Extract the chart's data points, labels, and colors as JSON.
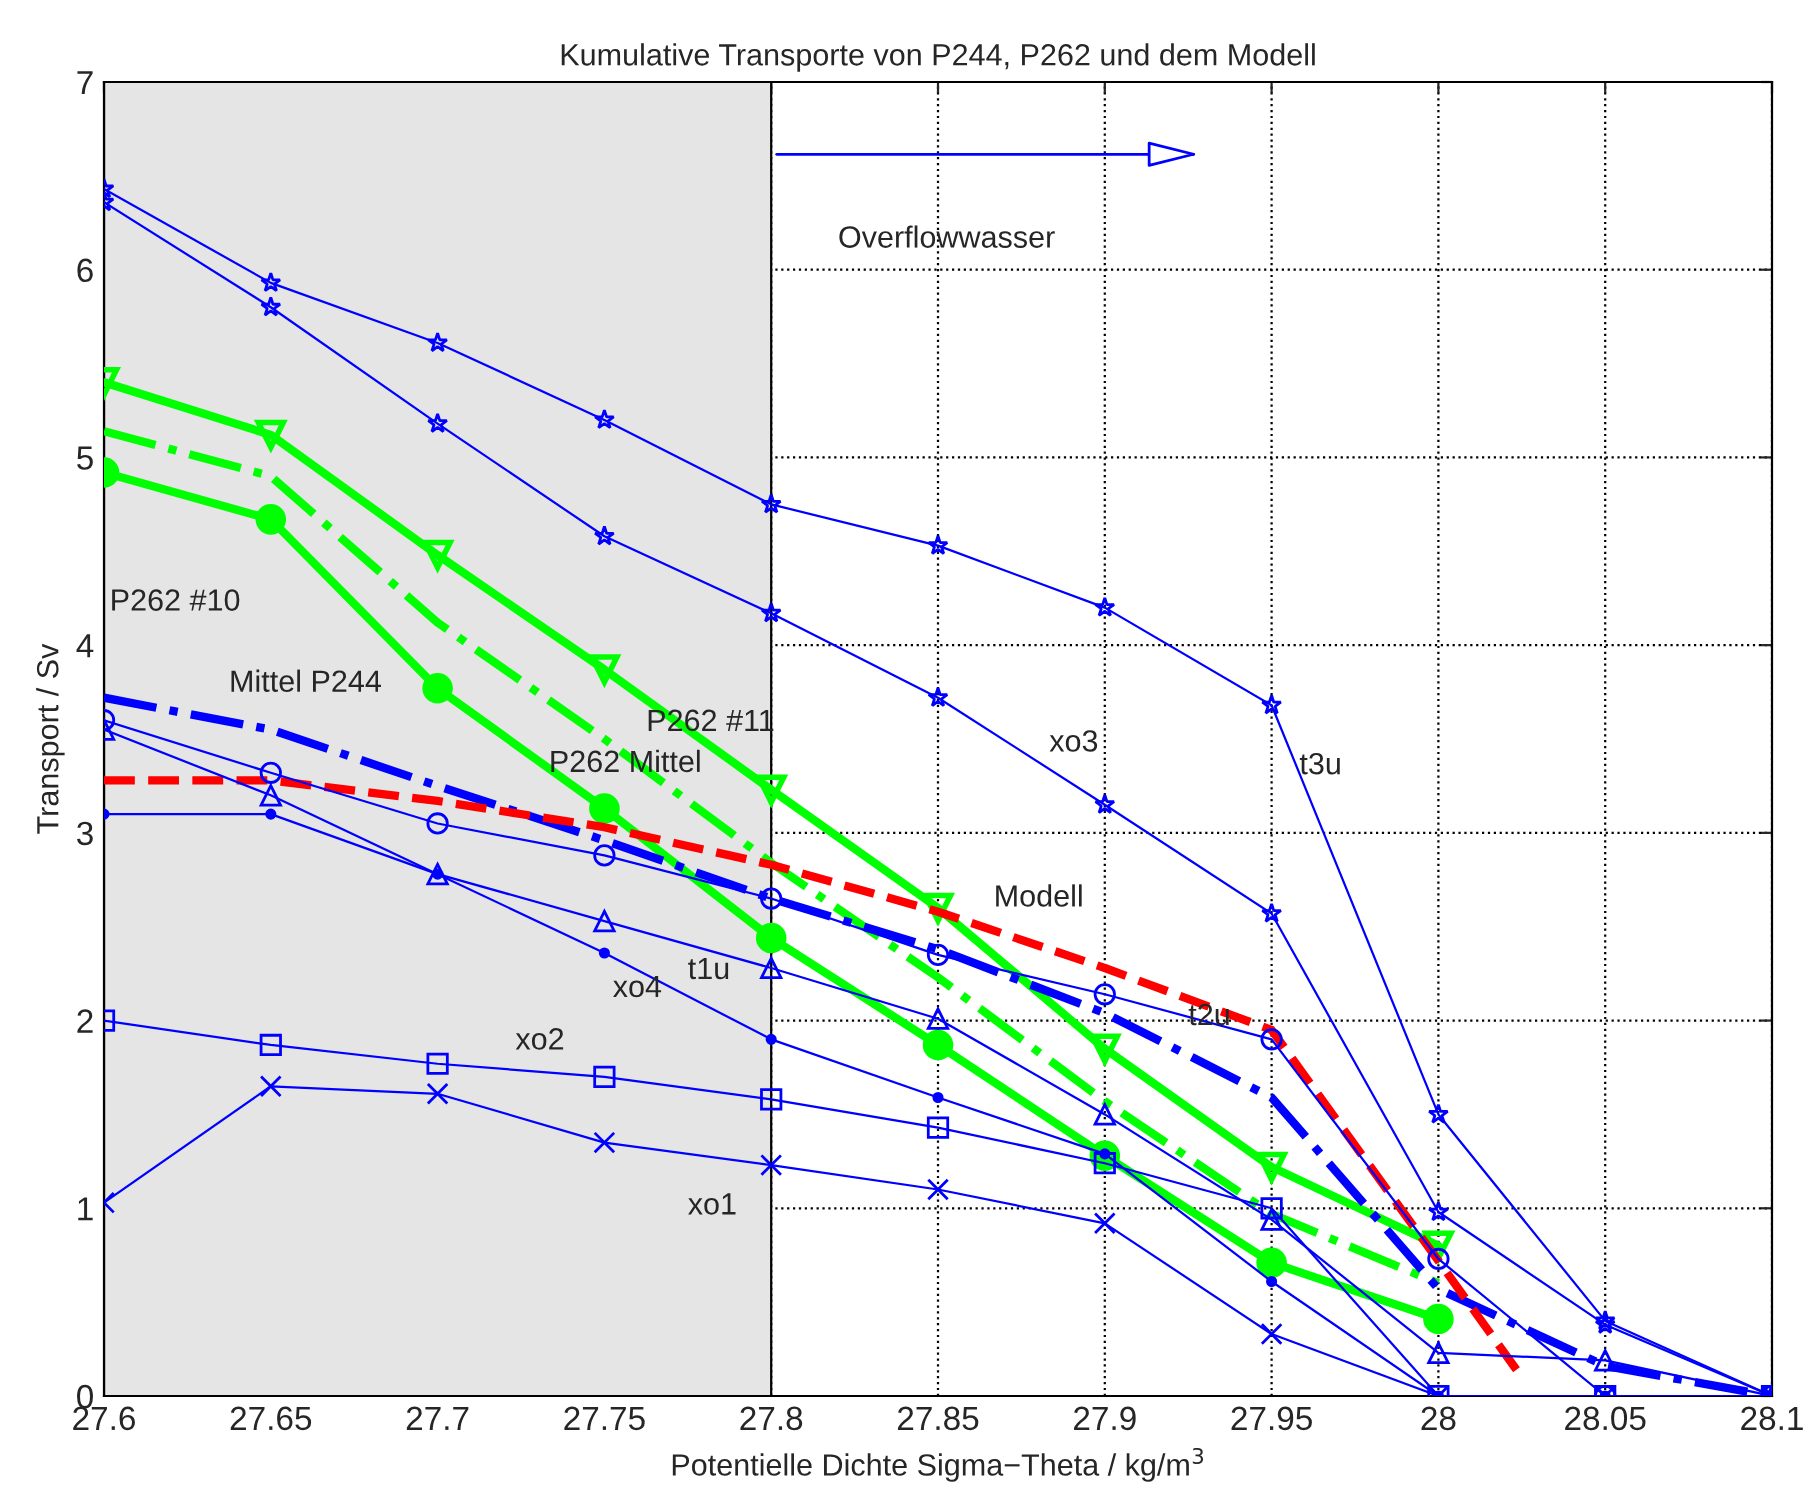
{
  "chart_data": {
    "type": "line",
    "title": "Kumulative Transporte von P244, P262 und dem Modell",
    "xlabel": "Potentielle Dichte Sigma−Theta / kg/m$^{3}$",
    "ylabel": "Transport / Sv",
    "x": [
      27.6,
      27.65,
      27.7,
      27.75,
      27.8,
      27.85,
      27.9,
      27.95,
      28,
      28.05,
      28.1
    ],
    "xlim": [
      27.6,
      28.1
    ],
    "ylim": [
      0,
      7
    ],
    "xticks": [
      27.6,
      27.65,
      27.7,
      27.75,
      27.8,
      27.85,
      27.9,
      27.95,
      28,
      28.05,
      28.1
    ],
    "yticks": [
      0,
      1,
      2,
      3,
      4,
      5,
      6,
      7
    ],
    "grid": true,
    "legend": false,
    "bands": [
      {
        "axis": "x",
        "from": 27.6,
        "to": 27.8,
        "color": "#e5e5e5"
      }
    ],
    "annotations": [
      "Overflowwasser"
    ],
    "series": [
      {
        "name": "t3u",
        "color": "#0000ff",
        "marker": "star",
        "line_style": "solid",
        "values": [
          6.43,
          5.93,
          5.61,
          5.2,
          4.75,
          4.53,
          4.2,
          3.68,
          1.5,
          0.4,
          0
        ]
      },
      {
        "name": "xo3",
        "color": "#0000ff",
        "marker": "star",
        "line_style": "solid",
        "values": [
          6.36,
          5.8,
          5.18,
          4.58,
          4.17,
          3.72,
          3.15,
          2.57,
          0.98,
          0.38,
          0
        ]
      },
      {
        "name": "P262 #11",
        "color": "#00ff00",
        "marker": "triangle_down",
        "line_style": "solid",
        "values": [
          5.4,
          5.12,
          4.48,
          3.87,
          3.23,
          2.6,
          1.85,
          1.22,
          0.8,
          null,
          null
        ]
      },
      {
        "name": "P262 Mittel",
        "color": "#00ff00",
        "marker": "none",
        "line_style": "dashdot",
        "values": [
          5.14,
          4.9,
          4.12,
          3.5,
          2.84,
          2.23,
          1.57,
          0.97,
          0.6,
          null,
          null
        ]
      },
      {
        "name": "P262 #10",
        "color": "#00ff00",
        "marker": "circle_filled",
        "line_style": "solid",
        "values": [
          4.92,
          4.67,
          3.77,
          3.13,
          2.44,
          1.87,
          1.28,
          0.71,
          0.41,
          null,
          null
        ]
      },
      {
        "name": "Mittel P244",
        "color": "#0000ff",
        "marker": "none",
        "line_style": "dashdot",
        "values": [
          3.72,
          3.55,
          3.25,
          2.96,
          2.65,
          2.38,
          2.04,
          1.59,
          0.57,
          0.16,
          0
        ]
      },
      {
        "name": "Modell",
        "color": "#ff0000",
        "marker": "none",
        "line_style": "dashed",
        "x": [
          27.6,
          27.65,
          27.7,
          27.75,
          27.8,
          27.85,
          27.9,
          27.95,
          28,
          28.025
        ],
        "values": [
          3.28,
          3.28,
          3.17,
          3.03,
          2.83,
          2.58,
          2.28,
          1.95,
          0.72,
          0.1
        ]
      },
      {
        "name": "t2u",
        "color": "#0000ff",
        "marker": "circle",
        "line_style": "solid",
        "values": [
          3.6,
          3.32,
          3.05,
          2.88,
          2.65,
          2.35,
          2.14,
          1.9,
          0.73,
          0,
          0
        ]
      },
      {
        "name": "t1u",
        "color": "#0000ff",
        "marker": "triangle",
        "line_style": "solid",
        "values": [
          3.55,
          3.2,
          2.78,
          2.53,
          2.28,
          2.01,
          1.5,
          0.94,
          0.23,
          0.19,
          0
        ]
      },
      {
        "name": "xo4",
        "color": "#0000ff",
        "marker": "point",
        "line_style": "solid",
        "values": [
          3.1,
          3.1,
          2.78,
          2.36,
          1.9,
          1.59,
          1.29,
          0.61,
          0,
          0,
          0
        ]
      },
      {
        "name": "xo2",
        "color": "#0000ff",
        "marker": "square",
        "line_style": "solid",
        "values": [
          2.0,
          1.87,
          1.77,
          1.7,
          1.58,
          1.43,
          1.24,
          1.0,
          0,
          0,
          0
        ]
      },
      {
        "name": "xo1",
        "color": "#0000ff",
        "marker": "cross",
        "line_style": "solid",
        "values": [
          1.03,
          1.65,
          1.61,
          1.35,
          1.23,
          1.1,
          0.92,
          0.33,
          0,
          0,
          0
        ]
      }
    ]
  }
}
